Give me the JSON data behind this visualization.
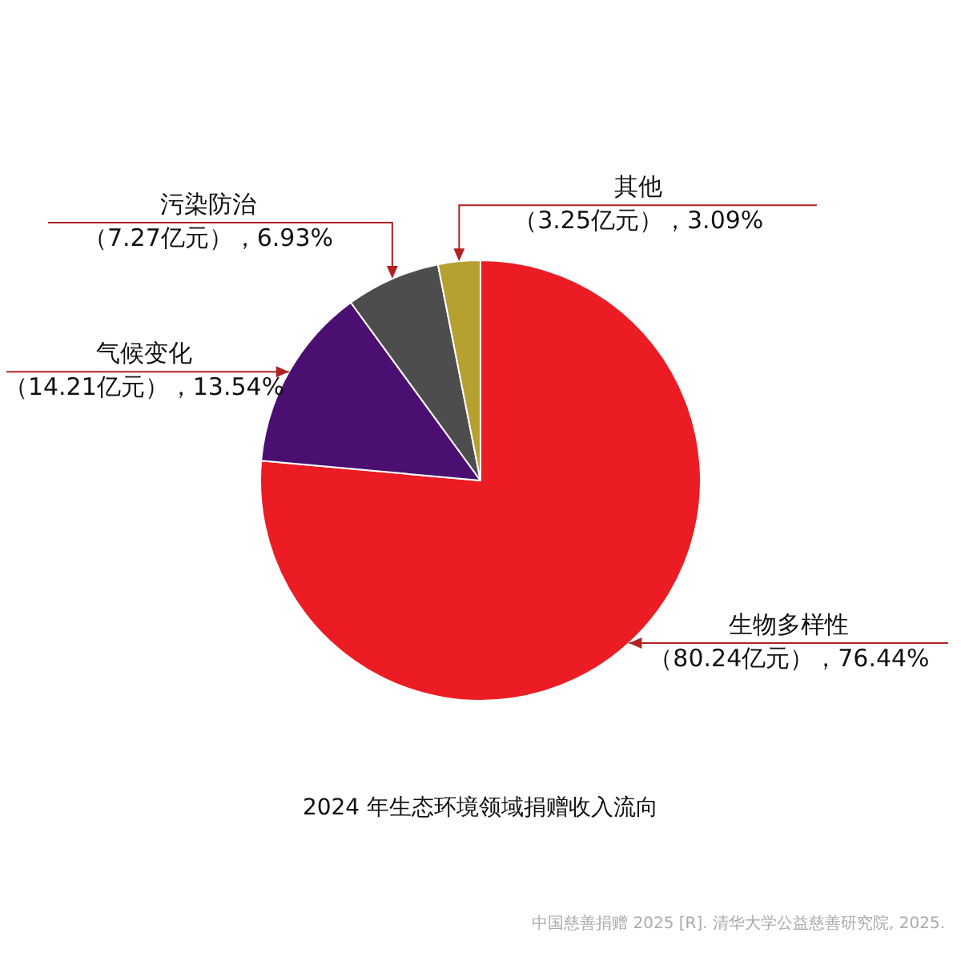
{
  "chart_data": {
    "type": "pie",
    "title": "2024 年生态环境领域捐赠收入流向",
    "categories": [
      "生物多样性",
      "气候变化",
      "污染防治",
      "其他"
    ],
    "values": [
      80.24,
      14.21,
      7.27,
      3.25
    ],
    "colors": [
      "#ec1c24",
      "#4b0f72",
      "#4d4d4d",
      "#b5a030"
    ],
    "value_labels": [
      "（80.24亿元），76.44%",
      "（14.21亿元），13.54%",
      "（7.27亿元），6.93%",
      "（3.25亿元），3.09%"
    ],
    "annotations": [
      "中国慈善捐赠 2025 [R]. 清华大学公益慈善研究院, 2025."
    ]
  }
}
